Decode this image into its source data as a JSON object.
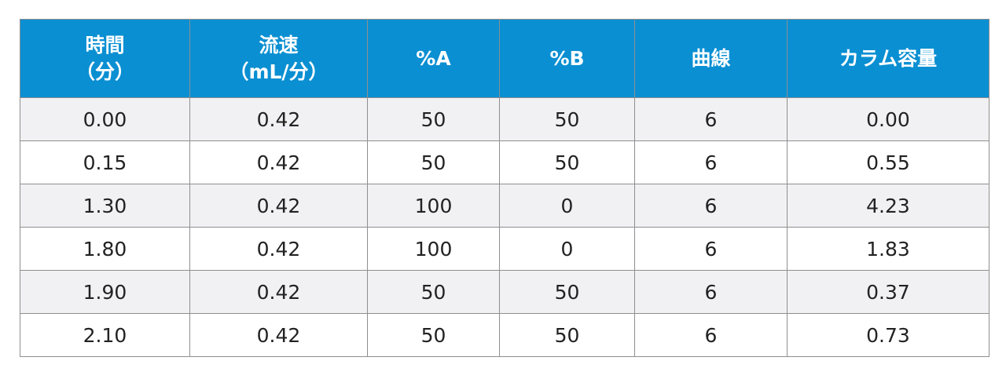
{
  "table": {
    "headers": [
      [
        "時間",
        "（分）"
      ],
      [
        "流速",
        "（mL/分）"
      ],
      [
        "%A"
      ],
      [
        "%B"
      ],
      [
        "曲線"
      ],
      [
        "カラム容量"
      ]
    ],
    "rows": [
      [
        "0.00",
        "0.42",
        "50",
        "50",
        "6",
        "0.00"
      ],
      [
        "0.15",
        "0.42",
        "50",
        "50",
        "6",
        "0.55"
      ],
      [
        "1.30",
        "0.42",
        "100",
        "0",
        "6",
        "4.23"
      ],
      [
        "1.80",
        "0.42",
        "100",
        "0",
        "6",
        "1.83"
      ],
      [
        "1.90",
        "0.42",
        "50",
        "50",
        "6",
        "0.37"
      ],
      [
        "2.10",
        "0.42",
        "50",
        "50",
        "6",
        "0.73"
      ]
    ]
  },
  "colors": {
    "header_bg": "#0a8fd2",
    "header_text": "#ffffff",
    "row_odd_bg": "#f1f1f3",
    "row_even_bg": "#ffffff",
    "border": "#8f8f8f"
  }
}
